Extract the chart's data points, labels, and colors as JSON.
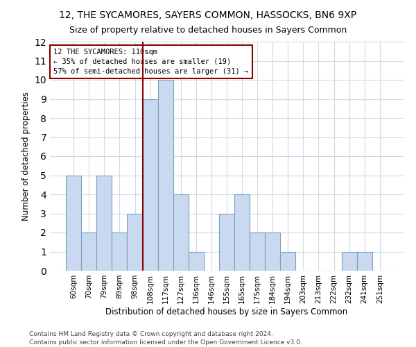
{
  "title": "12, THE SYCAMORES, SAYERS COMMON, HASSOCKS, BN6 9XP",
  "subtitle": "Size of property relative to detached houses in Sayers Common",
  "xlabel": "Distribution of detached houses by size in Sayers Common",
  "ylabel": "Number of detached properties",
  "bar_labels": [
    "60sqm",
    "70sqm",
    "79sqm",
    "89sqm",
    "98sqm",
    "108sqm",
    "117sqm",
    "127sqm",
    "136sqm",
    "146sqm",
    "155sqm",
    "165sqm",
    "175sqm",
    "184sqm",
    "194sqm",
    "203sqm",
    "213sqm",
    "222sqm",
    "232sqm",
    "241sqm",
    "251sqm"
  ],
  "bar_values": [
    5,
    2,
    5,
    2,
    3,
    9,
    10,
    4,
    1,
    0,
    3,
    4,
    2,
    2,
    1,
    0,
    0,
    0,
    1,
    1,
    0
  ],
  "bar_color": "#c9d9f0",
  "bar_edge_color": "#7a9fc4",
  "ylim": [
    0,
    12
  ],
  "yticks": [
    0,
    1,
    2,
    3,
    4,
    5,
    6,
    7,
    8,
    9,
    10,
    11,
    12
  ],
  "property_line_index": 5,
  "property_line_color": "#8b0000",
  "annotation_text": "12 THE SYCAMORES: 110sqm\n← 35% of detached houses are smaller (19)\n57% of semi-detached houses are larger (31) →",
  "annotation_box_color": "#8b0000",
  "footer_line1": "Contains HM Land Registry data © Crown copyright and database right 2024.",
  "footer_line2": "Contains public sector information licensed under the Open Government Licence v3.0.",
  "title_fontsize": 10,
  "subtitle_fontsize": 9,
  "xlabel_fontsize": 8.5,
  "ylabel_fontsize": 8.5,
  "tick_fontsize": 7.5,
  "annotation_fontsize": 7.5,
  "footer_fontsize": 6.5,
  "background_color": "#ffffff",
  "grid_color": "#d0d8e8"
}
